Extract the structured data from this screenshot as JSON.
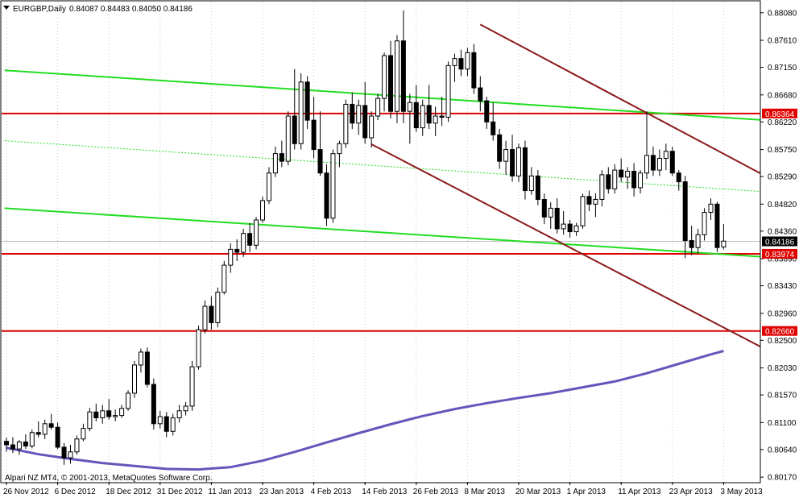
{
  "header": {
    "symbol": "EURGBP,Daily",
    "ohlc": "0.84087 0.84483 0.84050 0.84186"
  },
  "footer": {
    "copyright": "Alpari NZ MT4, © 2001-2013, MetaQuotes Software Corp."
  },
  "colors": {
    "background": "#ffffff",
    "candle_bull_body": "#ffffff",
    "candle_bear_body": "#000000",
    "candle_outline": "#000000",
    "horizontal_level": "#e00000",
    "channel_green": "#22dd22",
    "channel_brown": "#8b1a1a",
    "moving_average": "#6655bb",
    "price_tag_current": "#000000",
    "price_tag_level": "#e00000"
  },
  "chart_data": {
    "type": "candlestick",
    "y_axis": {
      "range": [
        0.8015,
        0.8837
      ],
      "tick_labels": [
        "0.88080",
        "0.87610",
        "0.87150",
        "0.86680",
        "0.86220",
        "0.85750",
        "0.85290",
        "0.84820",
        "0.84360",
        "0.83890",
        "0.83430",
        "0.82960",
        "0.82500",
        "0.82030",
        "0.81570",
        "0.81100",
        "0.80640",
        "0.80170"
      ]
    },
    "x_axis": {
      "tick_labels": [
        "26 Nov 2012",
        "6 Dec 2012",
        "18 Dec 2012",
        "31 Dec 2012",
        "11 Jan 2013",
        "23 Jan 2013",
        "4 Feb 2013",
        "14 Feb 2013",
        "26 Feb 2013",
        "8 Mar 2013",
        "20 Mar 2013",
        "1 Apr 2013",
        "11 Apr 2013",
        "23 Apr 2013",
        "3 May 2013"
      ],
      "tick_index": [
        0,
        8,
        16,
        24,
        32,
        40,
        48,
        56,
        64,
        72,
        80,
        88,
        96,
        104,
        112
      ]
    },
    "price_levels": [
      {
        "value": 0.86364,
        "label": "0.86364"
      },
      {
        "value": 0.83974,
        "label": "0.83974"
      },
      {
        "value": 0.8266,
        "label": "0.82660"
      }
    ],
    "current_price": {
      "value": 0.84186,
      "label": "0.84186"
    },
    "trendlines": [
      {
        "name": "green-upper",
        "style": "solid",
        "color": "channel_green",
        "from": [
          -0.3,
          0.871
        ],
        "to": [
          118.5,
          0.8625
        ]
      },
      {
        "name": "green-middle",
        "style": "dotted",
        "color": "channel_green",
        "from": [
          -0.3,
          0.859
        ],
        "to": [
          118.5,
          0.8503
        ]
      },
      {
        "name": "green-lower",
        "style": "solid",
        "color": "channel_green",
        "from": [
          -0.3,
          0.8475
        ],
        "to": [
          118.5,
          0.8392
        ]
      },
      {
        "name": "brown-upper",
        "style": "solid",
        "color": "channel_brown",
        "from": [
          74,
          0.8788
        ],
        "to": [
          118.5,
          0.853
        ]
      },
      {
        "name": "brown-lower",
        "style": "solid",
        "color": "channel_brown",
        "from": [
          57,
          0.8584
        ],
        "to": [
          118.5,
          0.8235
        ]
      }
    ],
    "moving_average": {
      "index": [
        0,
        5,
        10,
        15,
        20,
        25,
        30,
        35,
        40,
        45,
        50,
        55,
        60,
        65,
        70,
        75,
        80,
        85,
        90,
        95,
        100,
        105,
        110,
        112
      ],
      "values": [
        0.8067,
        0.8056,
        0.8048,
        0.8041,
        0.8036,
        0.8031,
        0.803,
        0.8034,
        0.8045,
        0.806,
        0.8076,
        0.8092,
        0.8107,
        0.8121,
        0.8133,
        0.8143,
        0.8152,
        0.816,
        0.817,
        0.818,
        0.8194,
        0.821,
        0.8226,
        0.8232
      ]
    },
    "candles": [
      [
        0.8078,
        0.8084,
        0.806,
        0.8072
      ],
      [
        0.8072,
        0.8085,
        0.8058,
        0.8065
      ],
      [
        0.8065,
        0.808,
        0.8055,
        0.8077
      ],
      [
        0.8077,
        0.809,
        0.8065,
        0.807
      ],
      [
        0.807,
        0.8098,
        0.8066,
        0.8093
      ],
      [
        0.8093,
        0.8112,
        0.8085,
        0.809
      ],
      [
        0.809,
        0.8115,
        0.8082,
        0.8108
      ],
      [
        0.8108,
        0.8125,
        0.8098,
        0.8102
      ],
      [
        0.8102,
        0.811,
        0.8065,
        0.8068
      ],
      [
        0.8068,
        0.8075,
        0.8038,
        0.805
      ],
      [
        0.805,
        0.8072,
        0.804,
        0.806
      ],
      [
        0.806,
        0.8088,
        0.8055,
        0.8082
      ],
      [
        0.8082,
        0.8108,
        0.8078,
        0.81
      ],
      [
        0.81,
        0.8135,
        0.8095,
        0.8128
      ],
      [
        0.8128,
        0.8142,
        0.8112,
        0.8118
      ],
      [
        0.8118,
        0.814,
        0.8108,
        0.813
      ],
      [
        0.813,
        0.815,
        0.8115,
        0.812
      ],
      [
        0.812,
        0.8132,
        0.8112,
        0.8122
      ],
      [
        0.8122,
        0.814,
        0.8118,
        0.8134
      ],
      [
        0.8134,
        0.8165,
        0.813,
        0.816
      ],
      [
        0.816,
        0.8215,
        0.8152,
        0.8208
      ],
      [
        0.8208,
        0.8236,
        0.8195,
        0.823
      ],
      [
        0.823,
        0.8238,
        0.817,
        0.8175
      ],
      [
        0.8175,
        0.8185,
        0.8098,
        0.8108
      ],
      [
        0.8108,
        0.813,
        0.81,
        0.812
      ],
      [
        0.812,
        0.8128,
        0.8085,
        0.8095
      ],
      [
        0.8095,
        0.8125,
        0.8088,
        0.8118
      ],
      [
        0.8118,
        0.814,
        0.811,
        0.813
      ],
      [
        0.813,
        0.8145,
        0.8122,
        0.8138
      ],
      [
        0.8138,
        0.8215,
        0.813,
        0.8205
      ],
      [
        0.8205,
        0.8275,
        0.82,
        0.8268
      ],
      [
        0.8268,
        0.8318,
        0.8262,
        0.8308
      ],
      [
        0.8308,
        0.8325,
        0.8268,
        0.828
      ],
      [
        0.828,
        0.834,
        0.8272,
        0.8332
      ],
      [
        0.8332,
        0.8385,
        0.8328,
        0.8378
      ],
      [
        0.8378,
        0.8415,
        0.8365,
        0.8405
      ],
      [
        0.8405,
        0.8422,
        0.8385,
        0.84
      ],
      [
        0.84,
        0.844,
        0.8392,
        0.8432
      ],
      [
        0.8432,
        0.845,
        0.84,
        0.8412
      ],
      [
        0.8412,
        0.846,
        0.8405,
        0.8455
      ],
      [
        0.8455,
        0.8495,
        0.845,
        0.8488
      ],
      [
        0.8488,
        0.8545,
        0.8482,
        0.8535
      ],
      [
        0.8535,
        0.858,
        0.8528,
        0.8568
      ],
      [
        0.8568,
        0.859,
        0.8545,
        0.8555
      ],
      [
        0.8555,
        0.864,
        0.8548,
        0.8632
      ],
      [
        0.8632,
        0.8712,
        0.8575,
        0.8585
      ],
      [
        0.8585,
        0.8705,
        0.8575,
        0.869
      ],
      [
        0.869,
        0.87,
        0.861,
        0.8625
      ],
      [
        0.8625,
        0.8665,
        0.856,
        0.8575
      ],
      [
        0.8575,
        0.864,
        0.853,
        0.8535
      ],
      [
        0.8535,
        0.855,
        0.8445,
        0.8458
      ],
      [
        0.8458,
        0.8575,
        0.845,
        0.8568
      ],
      [
        0.8568,
        0.859,
        0.8545,
        0.8585
      ],
      [
        0.8585,
        0.866,
        0.8578,
        0.8652
      ],
      [
        0.8652,
        0.8672,
        0.861,
        0.862
      ],
      [
        0.862,
        0.866,
        0.86,
        0.865
      ],
      [
        0.865,
        0.869,
        0.8585,
        0.8595
      ],
      [
        0.8595,
        0.864,
        0.8578,
        0.8632
      ],
      [
        0.8632,
        0.867,
        0.8625,
        0.8662
      ],
      [
        0.8662,
        0.874,
        0.864,
        0.8735
      ],
      [
        0.8735,
        0.876,
        0.8628,
        0.864
      ],
      [
        0.864,
        0.877,
        0.862,
        0.876
      ],
      [
        0.876,
        0.8812,
        0.862,
        0.864
      ],
      [
        0.864,
        0.867,
        0.8585,
        0.8655
      ],
      [
        0.8655,
        0.8685,
        0.8605,
        0.8612
      ],
      [
        0.8612,
        0.866,
        0.8598,
        0.865
      ],
      [
        0.865,
        0.8685,
        0.861,
        0.862
      ],
      [
        0.862,
        0.8648,
        0.8598,
        0.8632
      ],
      [
        0.8632,
        0.8665,
        0.8615,
        0.863
      ],
      [
        0.863,
        0.8725,
        0.8622,
        0.8718
      ],
      [
        0.8718,
        0.8738,
        0.869,
        0.873
      ],
      [
        0.873,
        0.8745,
        0.87,
        0.8712
      ],
      [
        0.8712,
        0.8748,
        0.87,
        0.874
      ],
      [
        0.874,
        0.8755,
        0.867,
        0.868
      ],
      [
        0.868,
        0.87,
        0.864,
        0.8658
      ],
      [
        0.8658,
        0.8665,
        0.861,
        0.8622
      ],
      [
        0.8622,
        0.8655,
        0.859,
        0.86
      ],
      [
        0.86,
        0.861,
        0.8542,
        0.8555
      ],
      [
        0.8555,
        0.859,
        0.8532,
        0.8575
      ],
      [
        0.8575,
        0.86,
        0.852,
        0.853
      ],
      [
        0.853,
        0.8585,
        0.852,
        0.8578
      ],
      [
        0.8578,
        0.859,
        0.849,
        0.8505
      ],
      [
        0.8505,
        0.8545,
        0.8498,
        0.853
      ],
      [
        0.853,
        0.854,
        0.848,
        0.849
      ],
      [
        0.849,
        0.85,
        0.8448,
        0.846
      ],
      [
        0.846,
        0.8485,
        0.844,
        0.8475
      ],
      [
        0.8475,
        0.8492,
        0.8432,
        0.844
      ],
      [
        0.844,
        0.847,
        0.843,
        0.8448
      ],
      [
        0.8448,
        0.8455,
        0.8425,
        0.8435
      ],
      [
        0.8435,
        0.845,
        0.8428,
        0.8445
      ],
      [
        0.8445,
        0.85,
        0.844,
        0.8495
      ],
      [
        0.8495,
        0.8505,
        0.847,
        0.8482
      ],
      [
        0.8482,
        0.85,
        0.846,
        0.849
      ],
      [
        0.849,
        0.854,
        0.8478,
        0.8532
      ],
      [
        0.8532,
        0.8545,
        0.85,
        0.8508
      ],
      [
        0.8508,
        0.855,
        0.85,
        0.854
      ],
      [
        0.854,
        0.856,
        0.852,
        0.8528
      ],
      [
        0.8528,
        0.8545,
        0.8508,
        0.8538
      ],
      [
        0.8538,
        0.8552,
        0.8495,
        0.851
      ],
      [
        0.851,
        0.854,
        0.85,
        0.8535
      ],
      [
        0.8535,
        0.864,
        0.8525,
        0.8565
      ],
      [
        0.8565,
        0.858,
        0.853,
        0.854
      ],
      [
        0.854,
        0.8575,
        0.853,
        0.856
      ],
      [
        0.856,
        0.8585,
        0.854,
        0.8572
      ],
      [
        0.8572,
        0.858,
        0.853,
        0.8535
      ],
      [
        0.8535,
        0.854,
        0.8505,
        0.852
      ],
      [
        0.852,
        0.853,
        0.839,
        0.842
      ],
      [
        0.842,
        0.8445,
        0.8395,
        0.8408
      ],
      [
        0.8408,
        0.844,
        0.8398,
        0.843
      ],
      [
        0.843,
        0.8475,
        0.842,
        0.8468
      ],
      [
        0.8468,
        0.8492,
        0.8455,
        0.8482
      ],
      [
        0.8482,
        0.8486,
        0.84,
        0.8408
      ],
      [
        0.8409,
        0.8448,
        0.8405,
        0.8419
      ]
    ]
  }
}
